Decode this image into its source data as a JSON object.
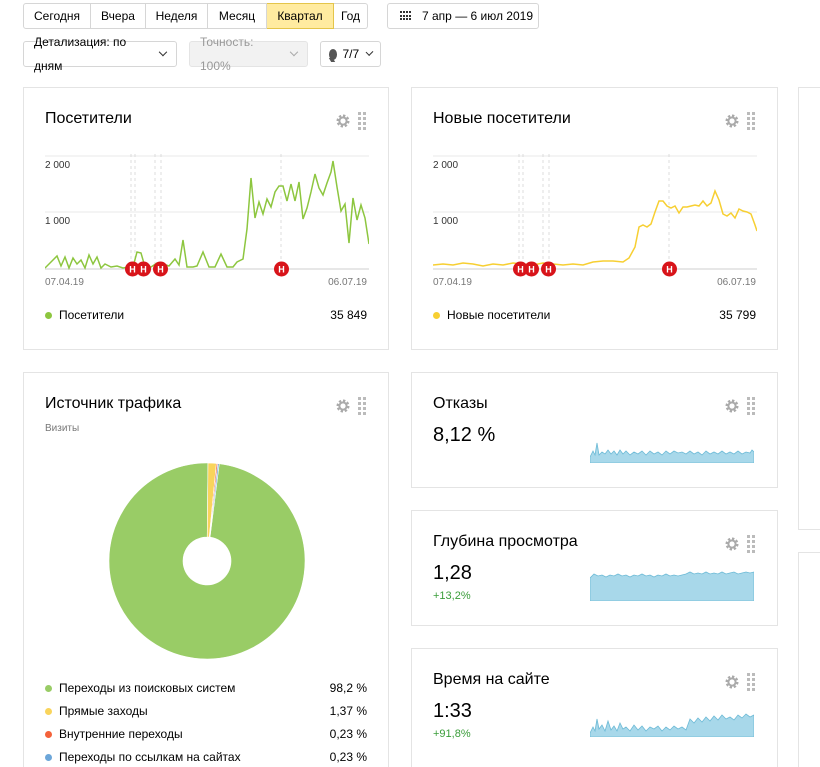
{
  "periods": [
    {
      "label": "Сегодня",
      "active": false
    },
    {
      "label": "Вчера",
      "active": false
    },
    {
      "label": "Неделя",
      "active": false
    },
    {
      "label": "Месяц",
      "active": false
    },
    {
      "label": "Квартал",
      "active": true
    },
    {
      "label": "Год",
      "active": false
    }
  ],
  "date_range": "7 апр — 6 июл 2019",
  "detail_dropdown": "Детализация: по дням",
  "accuracy_dropdown": "Точность: 100%",
  "notes_dropdown": "7/7",
  "visitors": {
    "title": "Посетители",
    "y_ticks": [
      "2 000",
      "1 000"
    ],
    "x_start": "07.04.19",
    "x_end": "06.07.19",
    "legend_label": "Посетители",
    "legend_value": "35 849",
    "color": "#8dc63f"
  },
  "new_visitors": {
    "title": "Новые посетители",
    "y_ticks": [
      "2 000",
      "1 000"
    ],
    "x_start": "07.04.19",
    "x_end": "06.07.19",
    "legend_label": "Новые посетители",
    "legend_value": "35 799",
    "color": "#f7cf32"
  },
  "note_marker": "Н",
  "traffic": {
    "title": "Источник трафика",
    "subtitle": "Визиты",
    "items": [
      {
        "label": "Переходы из поисковых систем",
        "value": "98,2 %",
        "color": "#99cc66"
      },
      {
        "label": "Прямые заходы",
        "value": "1,37 %",
        "color": "#f9d45c"
      },
      {
        "label": "Внутренние переходы",
        "value": "0,23 %",
        "color": "#f4623a"
      },
      {
        "label": "Переходы по ссылкам на сайтах",
        "value": "0,23 %",
        "color": "#6ca6d9"
      }
    ]
  },
  "bounce": {
    "title": "Отказы",
    "value": "8,12 %"
  },
  "depth": {
    "title": "Глубина просмотра",
    "value": "1,28",
    "delta": "+13,2%"
  },
  "time": {
    "title": "Время на сайте",
    "value": "1:33",
    "delta": "+91,8%"
  }
}
